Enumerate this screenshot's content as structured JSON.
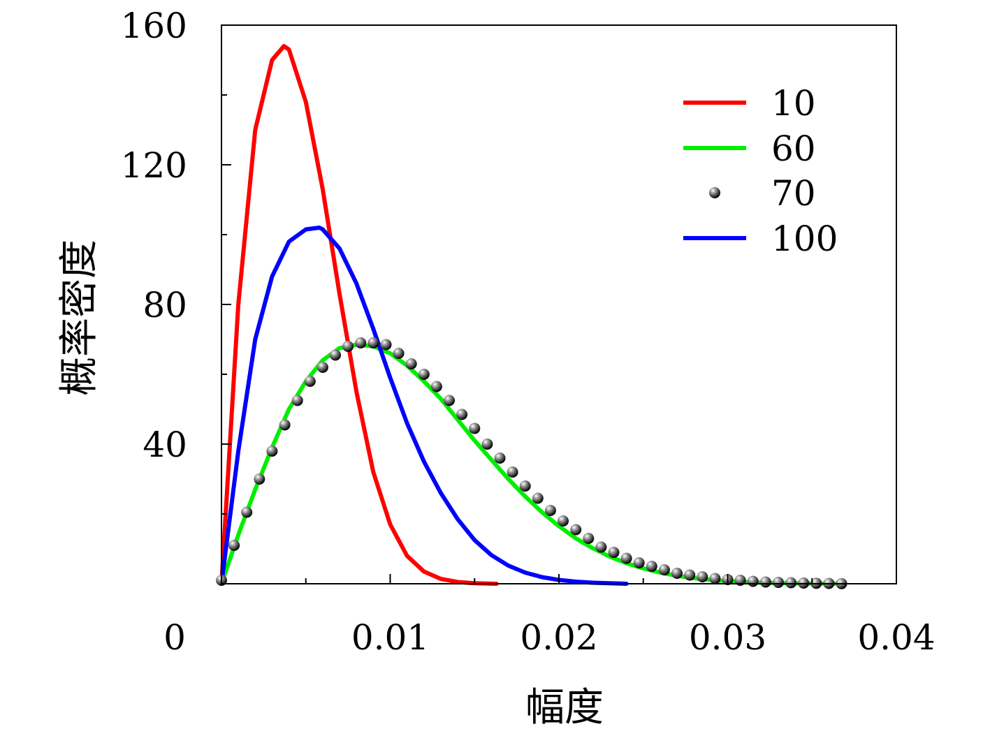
{
  "chart_data": {
    "type": "line",
    "xlabel": "幅度",
    "ylabel": "概率密度",
    "xlim": [
      0,
      0.04
    ],
    "ylim": [
      0,
      160
    ],
    "x_ticks": [
      0,
      0.01,
      0.02,
      0.03,
      0.04
    ],
    "x_tick_labels": [
      "0",
      "0.01",
      "0.02",
      "0.03",
      "0.04"
    ],
    "y_ticks": [
      40,
      80,
      120,
      160
    ],
    "y_tick_labels": [
      "40",
      "80",
      "120",
      "160"
    ],
    "y_minor_ticks": [
      20,
      60,
      100,
      140
    ],
    "x_minor_ticks": [
      0.005,
      0.015,
      0.025,
      0.035
    ],
    "legend_position": "top-right",
    "grid": false,
    "series": [
      {
        "name": "10",
        "style": "line",
        "color": "#ff0000",
        "x": [
          0,
          0.001,
          0.002,
          0.003,
          0.0037,
          0.004,
          0.005,
          0.006,
          0.007,
          0.008,
          0.009,
          0.01,
          0.011,
          0.012,
          0.013,
          0.014,
          0.015,
          0.0163
        ],
        "y": [
          0,
          80,
          130,
          150,
          154,
          153,
          138,
          113,
          83,
          55,
          32,
          17,
          8,
          3.5,
          1.4,
          0.5,
          0.15,
          0
        ]
      },
      {
        "name": "60",
        "style": "line",
        "color": "#00ee00",
        "x": [
          0,
          0.001,
          0.002,
          0.003,
          0.004,
          0.005,
          0.006,
          0.007,
          0.008,
          0.009,
          0.01,
          0.011,
          0.012,
          0.013,
          0.014,
          0.015,
          0.016,
          0.017,
          0.018,
          0.019,
          0.02,
          0.021,
          0.022,
          0.023,
          0.024,
          0.025,
          0.026,
          0.027,
          0.028,
          0.029,
          0.03,
          0.031,
          0.032,
          0.033,
          0.034,
          0.035,
          0.036,
          0.0368
        ],
        "y": [
          0,
          14,
          27,
          39,
          50,
          58,
          64,
          67.5,
          68.5,
          68,
          66,
          62.5,
          58,
          53,
          47,
          41,
          35.5,
          30,
          25,
          20.5,
          16.5,
          13,
          10.2,
          7.8,
          5.9,
          4.4,
          3.2,
          2.3,
          1.6,
          1.1,
          0.75,
          0.5,
          0.32,
          0.2,
          0.12,
          0.07,
          0.04,
          0.02
        ]
      },
      {
        "name": "70",
        "style": "markers",
        "color": "#000000",
        "x": [
          0,
          0.00075,
          0.0015,
          0.00225,
          0.003,
          0.00375,
          0.0045,
          0.00525,
          0.006,
          0.00675,
          0.0075,
          0.00825,
          0.009,
          0.00975,
          0.0105,
          0.01125,
          0.012,
          0.01275,
          0.0135,
          0.01425,
          0.015,
          0.01575,
          0.0165,
          0.01725,
          0.018,
          0.01875,
          0.0195,
          0.02025,
          0.021,
          0.02175,
          0.0225,
          0.02325,
          0.024,
          0.02475,
          0.0255,
          0.02625,
          0.027,
          0.02775,
          0.0285,
          0.02925,
          0.03,
          0.03075,
          0.0315,
          0.03225,
          0.033,
          0.03375,
          0.0345,
          0.03525,
          0.036,
          0.03675
        ],
        "y": [
          1,
          11,
          20.5,
          30,
          38,
          45.5,
          52.5,
          58,
          62,
          65.5,
          68,
          69,
          69,
          68.5,
          66,
          63,
          60,
          56.5,
          52.5,
          48.5,
          44.5,
          40,
          36,
          32,
          28,
          24.5,
          21,
          18,
          15.5,
          13,
          10.5,
          9,
          7.3,
          6,
          5,
          4,
          3,
          2.5,
          2,
          1.5,
          1.2,
          1,
          0.7,
          0.5,
          0.4,
          0.3,
          0.2,
          0.15,
          0.1,
          0.05
        ]
      },
      {
        "name": "100",
        "style": "line",
        "color": "#0000ff",
        "x": [
          0,
          0.001,
          0.002,
          0.003,
          0.004,
          0.005,
          0.0058,
          0.006,
          0.007,
          0.008,
          0.009,
          0.01,
          0.011,
          0.012,
          0.013,
          0.014,
          0.015,
          0.016,
          0.017,
          0.018,
          0.019,
          0.02,
          0.021,
          0.022,
          0.023,
          0.024
        ],
        "y": [
          0,
          38,
          70,
          88,
          98,
          101.5,
          102,
          101.5,
          96,
          86,
          73,
          59,
          46,
          35,
          26,
          18.5,
          12.5,
          8.2,
          5.2,
          3.2,
          1.9,
          1.1,
          0.6,
          0.3,
          0.15,
          0
        ]
      }
    ]
  }
}
